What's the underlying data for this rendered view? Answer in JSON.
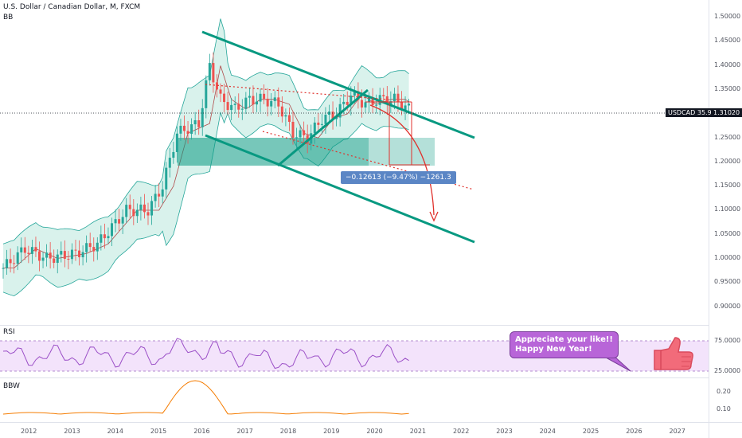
{
  "header": {
    "symbol_title": "U.S. Dollar / Canadian Dollar, M, FXCM",
    "indicator_label": "BB"
  },
  "price_axis": {
    "ticks": [
      "1.50000",
      "1.45000",
      "1.40000",
      "1.35000",
      "1.30000",
      "1.25000",
      "1.20000",
      "1.15000",
      "1.10000",
      "1.05000",
      "1.00000",
      "0.95000",
      "0.90000"
    ],
    "last_symbol_label": "USDCAD 35.99%",
    "last_price": "1.31020"
  },
  "time_axis": {
    "ticks": [
      "2012",
      "2013",
      "2014",
      "2015",
      "2016",
      "2017",
      "2018",
      "2019",
      "2020",
      "2021",
      "2022",
      "2023",
      "2024",
      "2025",
      "2026",
      "2027"
    ]
  },
  "measure_label": "−0.12613 (−9.47%) −1261.3",
  "rsi_pane": {
    "label": "RSI",
    "ticks": [
      "75.0000",
      "25.0000"
    ]
  },
  "bbw_pane": {
    "label": "BBW",
    "ticks": [
      "0.20",
      "0.10"
    ]
  },
  "callout": {
    "line1": "Appreciate your like!!",
    "line2": "Happy New Year!"
  },
  "icons": {
    "thumbs_up": "thumbs-up-icon"
  },
  "colors": {
    "channel": "#089981",
    "candle_up": "#26a69a",
    "candle_down": "#ef5350",
    "bb_fill": "#d9f2ec",
    "rsi_line": "#9b4fc7",
    "rsi_band": "#f3e3fb",
    "bbw_line": "#f57c00",
    "projection": "#e0312c"
  }
}
